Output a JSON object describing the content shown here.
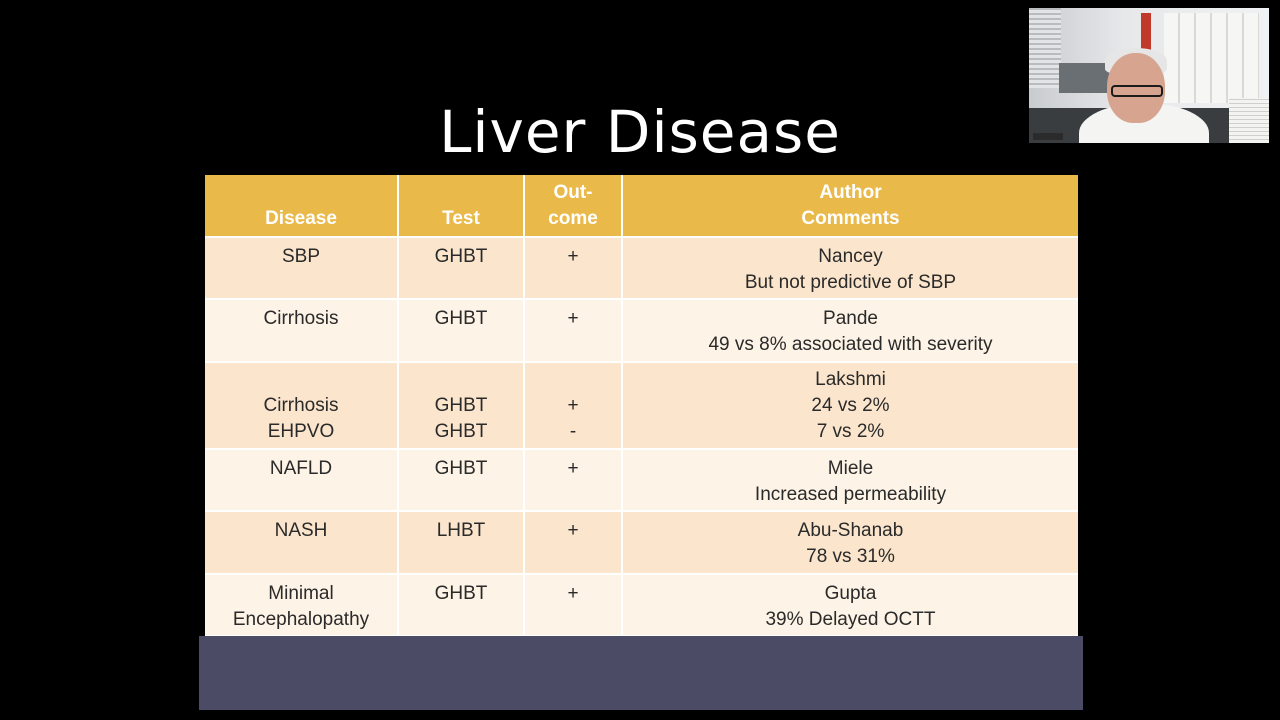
{
  "slide": {
    "title": "Liver Disease"
  },
  "table": {
    "headers": [
      {
        "lines": [
          "",
          "Disease"
        ]
      },
      {
        "lines": [
          "",
          "Test"
        ]
      },
      {
        "lines": [
          "Out-",
          "come"
        ]
      },
      {
        "lines": [
          "Author",
          "Comments"
        ]
      }
    ],
    "rows": [
      {
        "disease": [
          "SBP"
        ],
        "test": [
          "GHBT"
        ],
        "outcome": [
          "+"
        ],
        "comments": [
          "Nancey",
          "But not predictive of SBP"
        ]
      },
      {
        "disease": [
          "Cirrhosis"
        ],
        "test": [
          "GHBT"
        ],
        "outcome": [
          "+"
        ],
        "comments": [
          "Pande",
          "49 vs 8%  associated with severity"
        ]
      },
      {
        "disease": [
          "",
          "Cirrhosis",
          "EHPVO"
        ],
        "test": [
          "",
          "GHBT",
          "GHBT"
        ],
        "outcome": [
          "",
          "+",
          "-"
        ],
        "comments": [
          "Lakshmi",
          "24 vs 2%",
          "7 vs 2%"
        ]
      },
      {
        "disease": [
          "NAFLD"
        ],
        "test": [
          "GHBT"
        ],
        "outcome": [
          "+"
        ],
        "comments": [
          "Miele",
          "Increased permeability"
        ]
      },
      {
        "disease": [
          "NASH"
        ],
        "test": [
          "LHBT"
        ],
        "outcome": [
          "+"
        ],
        "comments": [
          "Abu-Shanab",
          "78 vs 31%"
        ]
      },
      {
        "disease": [
          "Minimal",
          "Encephalopathy"
        ],
        "test": [
          "GHBT"
        ],
        "outcome": [
          "+"
        ],
        "comments": [
          "Gupta",
          "39%  Delayed OCTT"
        ]
      }
    ]
  },
  "colors": {
    "header": "#e9b949",
    "row_odd": "#fbe6cd",
    "row_even": "#fdf3e6",
    "footer_band": "#4b4b66",
    "background": "#000000"
  }
}
